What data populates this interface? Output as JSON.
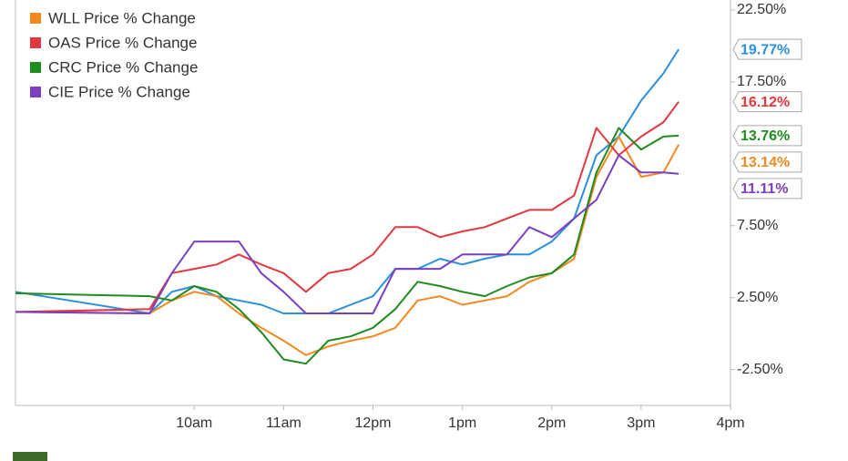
{
  "chart_data": {
    "type": "line",
    "x": [
      8,
      9.5,
      9.75,
      10,
      10.25,
      10.5,
      10.75,
      11,
      11.25,
      11.5,
      11.75,
      12,
      12.25,
      12.5,
      12.75,
      13,
      13.25,
      13.5,
      13.75,
      14,
      14.25,
      14.5,
      14.75,
      15,
      15.25,
      15.42
    ],
    "xlim": [
      8,
      16
    ],
    "xticks": [
      {
        "value": 10,
        "label": "10am"
      },
      {
        "value": 11,
        "label": "11am"
      },
      {
        "value": 12,
        "label": "12pm"
      },
      {
        "value": 13,
        "label": "1pm"
      },
      {
        "value": 14,
        "label": "2pm"
      },
      {
        "value": 15,
        "label": "3pm"
      },
      {
        "value": 16,
        "label": "4pm"
      }
    ],
    "ylim": [
      -5,
      23.3
    ],
    "yticks": [
      {
        "value": -2.5,
        "label": "-2.50%"
      },
      {
        "value": 2.5,
        "label": "2.50%"
      },
      {
        "value": 7.5,
        "label": "7.50%"
      },
      {
        "value": 17.5,
        "label": "17.50%"
      },
      {
        "value": 22.5,
        "label": "22.50%"
      }
    ],
    "grid": false,
    "legend": "top-left",
    "series": [
      {
        "name": null,
        "color": "#2a8fdc",
        "values": [
          2.9,
          1.4,
          2.9,
          3.3,
          2.6,
          2.3,
          2.0,
          1.4,
          1.4,
          1.4,
          2.0,
          2.6,
          4.5,
          4.5,
          5.2,
          4.8,
          5.2,
          5.5,
          5.5,
          6.4,
          8.0,
          12.4,
          13.7,
          16.2,
          18.1,
          19.77
        ],
        "value_labels": [
          null,
          null,
          null,
          null,
          null,
          null,
          null,
          null,
          null,
          null,
          null,
          null,
          null,
          null,
          null,
          null,
          null,
          null,
          null,
          null,
          null,
          null,
          null,
          null,
          null,
          "19.77%"
        ]
      },
      {
        "name": "WLL Price % Change",
        "color": "#f5891f",
        "values": [
          1.5,
          1.4,
          2.3,
          2.9,
          2.6,
          1.4,
          0.4,
          -0.5,
          -1.5,
          -0.9,
          -0.5,
          -0.2,
          0.4,
          2.3,
          2.6,
          2.0,
          2.3,
          2.6,
          3.6,
          4.2,
          5.2,
          10.9,
          13.7,
          10.9,
          11.2,
          13.14
        ],
        "value_labels": [
          null,
          null,
          null,
          null,
          null,
          null,
          null,
          null,
          null,
          null,
          null,
          null,
          null,
          null,
          null,
          null,
          null,
          null,
          null,
          null,
          null,
          null,
          null,
          null,
          null,
          "13.14%"
        ]
      },
      {
        "name": "OAS Price % Change",
        "color": "#e2383f",
        "values": [
          1.5,
          1.7,
          4.2,
          4.5,
          4.8,
          5.5,
          4.8,
          4.2,
          2.9,
          4.2,
          4.5,
          5.5,
          7.4,
          7.4,
          6.7,
          7.1,
          7.4,
          8.0,
          8.6,
          8.6,
          9.6,
          14.3,
          12.4,
          13.7,
          14.7,
          16.12
        ],
        "value_labels": [
          null,
          null,
          null,
          null,
          null,
          null,
          null,
          null,
          null,
          null,
          null,
          null,
          null,
          null,
          null,
          null,
          null,
          null,
          null,
          null,
          null,
          null,
          null,
          null,
          null,
          "16.12%"
        ]
      },
      {
        "name": "CRC Price % Change",
        "color": "#1e8c1e",
        "values": [
          2.8,
          2.6,
          2.3,
          3.3,
          2.9,
          1.7,
          0.1,
          -1.8,
          -2.1,
          -0.5,
          -0.2,
          0.4,
          1.7,
          3.6,
          3.3,
          2.9,
          2.6,
          3.3,
          3.9,
          4.2,
          5.5,
          11.2,
          14.3,
          12.8,
          13.7,
          13.76
        ],
        "value_labels": [
          null,
          null,
          null,
          null,
          null,
          null,
          null,
          null,
          null,
          null,
          null,
          null,
          null,
          null,
          null,
          null,
          null,
          null,
          null,
          null,
          null,
          null,
          null,
          null,
          null,
          "13.76%"
        ]
      },
      {
        "name": "CIE Price % Change",
        "color": "#7b3fbf",
        "values": [
          1.5,
          1.4,
          4.2,
          6.4,
          6.4,
          6.4,
          4.2,
          2.9,
          1.4,
          1.4,
          1.4,
          1.4,
          4.5,
          4.5,
          4.5,
          5.5,
          5.5,
          5.5,
          7.4,
          6.7,
          8.0,
          9.3,
          12.4,
          11.2,
          11.2,
          11.11
        ],
        "value_labels": [
          null,
          null,
          null,
          null,
          null,
          null,
          null,
          null,
          null,
          null,
          null,
          null,
          null,
          null,
          null,
          null,
          null,
          null,
          null,
          null,
          null,
          null,
          null,
          null,
          null,
          "11.11%"
        ]
      }
    ]
  }
}
